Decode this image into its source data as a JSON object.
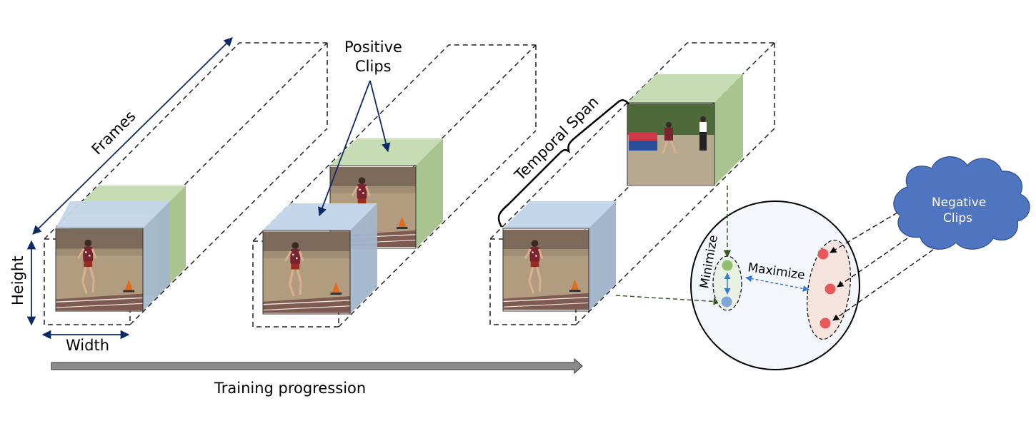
{
  "labels": {
    "frames": "Frames",
    "height": "Height",
    "width": "Width",
    "positive_clips_line1": "Positive",
    "positive_clips_line2": "Clips",
    "temporal_span": "Temporal Span",
    "training_progression": "Training progression",
    "minimize": "Minimize",
    "maximize": "Maximize",
    "negative_clips_line1": "Negative",
    "negative_clips_line2": "Clips"
  },
  "colors": {
    "cube_green_face": "#c6dcb4",
    "cube_green_side": "#a9c48f",
    "cube_blue_face": "#c4d6ea",
    "cube_blue_side": "#a3b6cc",
    "navy_arrow": "#0d2a66",
    "training_arrow": "#8a8a8a",
    "embedding_circle": "#f3f7fc",
    "positive_point_green": "#8fbf6b",
    "positive_point_blue": "#7ea7d8",
    "negative_points": "#e8585a",
    "negative_region": "#f7e4df",
    "cloud_fill": "#4f74c0",
    "maximize_arrow": "#3b7bcf"
  },
  "icons": {
    "clip_thumbnail": "track-athlete-frame-icon",
    "negative_cloud": "cloud-icon"
  }
}
